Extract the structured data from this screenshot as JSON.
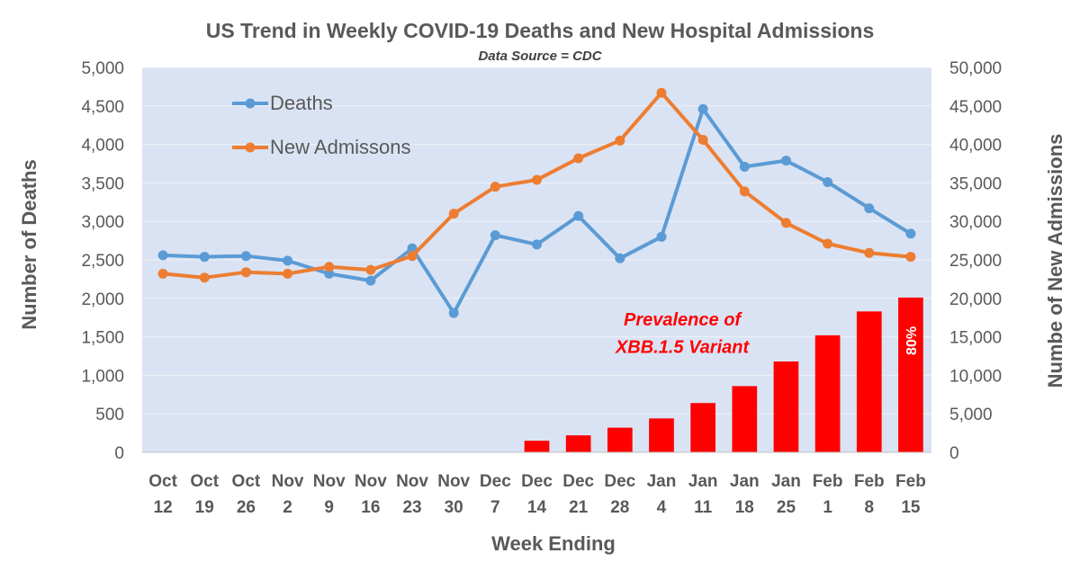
{
  "chart_data": {
    "type": "line",
    "title": "US Trend in Weekly COVID-19 Deaths and New Hospital Admissions",
    "subtitle": "Data Source = CDC",
    "xlabel": "Week Ending",
    "ylabel_left": "Number of  Deaths",
    "ylabel_right": "Numbe of New Admissions",
    "categories": [
      [
        "Oct",
        "12"
      ],
      [
        "Oct",
        "19"
      ],
      [
        "Oct",
        "26"
      ],
      [
        "Nov",
        "2"
      ],
      [
        "Nov",
        "9"
      ],
      [
        "Nov",
        "16"
      ],
      [
        "Nov",
        "23"
      ],
      [
        "Nov",
        "30"
      ],
      [
        "Dec",
        "7"
      ],
      [
        "Dec",
        "14"
      ],
      [
        "Dec",
        "21"
      ],
      [
        "Dec",
        "28"
      ],
      [
        "Jan",
        "4"
      ],
      [
        "Jan",
        "11"
      ],
      [
        "Jan",
        "18"
      ],
      [
        "Jan",
        "25"
      ],
      [
        "Feb",
        "1"
      ],
      [
        "Feb",
        "8"
      ],
      [
        "Feb",
        "15"
      ]
    ],
    "y_left": {
      "min": 0,
      "max": 5000,
      "step": 500,
      "ticks": [
        "0",
        "500",
        "1,000",
        "1,500",
        "2,000",
        "2,500",
        "3,000",
        "3,500",
        "4,000",
        "4,500",
        "5,000"
      ]
    },
    "y_right": {
      "min": 0,
      "max": 50000,
      "step": 5000,
      "ticks": [
        "0",
        "5,000",
        "10,000",
        "15,000",
        "20,000",
        "25,000",
        "30,000",
        "35,000",
        "40,000",
        "45,000",
        "50,000"
      ]
    },
    "grid": true,
    "legend_position": "top-left",
    "series": [
      {
        "name": "Deaths",
        "axis": "left",
        "color": "#5b9bd5",
        "values": [
          2560,
          2540,
          2550,
          2490,
          2320,
          2230,
          2650,
          1810,
          2820,
          2700,
          3070,
          2520,
          2800,
          4460,
          3710,
          3790,
          3510,
          3170,
          2840
        ]
      },
      {
        "name": "New Admissons",
        "axis": "right",
        "color": "#ed7d31",
        "values": [
          23200,
          22700,
          23400,
          23200,
          24100,
          23700,
          25500,
          31000,
          34500,
          35400,
          38200,
          40500,
          46700,
          40600,
          33900,
          29800,
          27100,
          25900,
          25400
        ]
      },
      {
        "name": "XBB.1.5 prevalence",
        "type": "bar",
        "axis": "left",
        "color": "#ff0000",
        "values": [
          null,
          null,
          null,
          null,
          null,
          null,
          null,
          null,
          null,
          150,
          220,
          320,
          440,
          640,
          860,
          1180,
          1520,
          1830,
          2010
        ]
      }
    ],
    "annotations": [
      {
        "text": "Prevalence of",
        "anchor_index": 12.5,
        "anchor_value": 1650
      },
      {
        "text": "XBB.1.5 Variant",
        "anchor_index": 12.5,
        "anchor_value": 1290
      }
    ],
    "bar_label": {
      "index": 18,
      "text": "80%"
    },
    "colors": {
      "plot_background": "#dae3f3",
      "bars": "#ff0000",
      "deaths": "#5b9bd5",
      "admissions": "#ed7d31"
    }
  }
}
